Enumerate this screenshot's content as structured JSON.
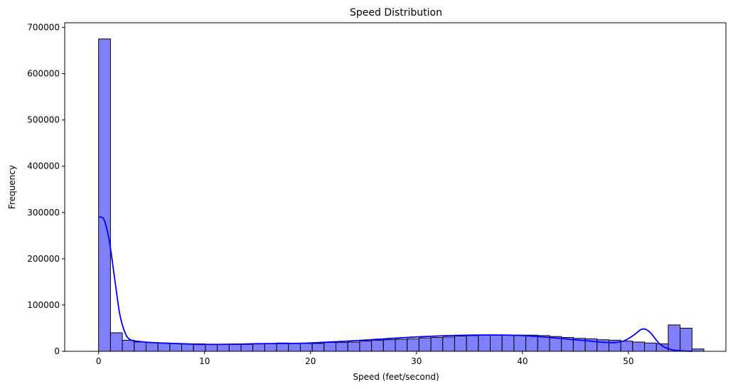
{
  "chart_data": {
    "type": "bar",
    "title": "Speed Distribution",
    "xlabel": "Speed (feet/second)",
    "ylabel": "Frequency",
    "xlim": [
      -3.2,
      59.2
    ],
    "ylim": [
      0,
      710000
    ],
    "xticks": [
      0,
      10,
      20,
      30,
      40,
      50
    ],
    "yticks": [
      0,
      100000,
      200000,
      300000,
      400000,
      500000,
      600000,
      700000
    ],
    "bin_width": 1.12,
    "bin_start": 0,
    "bar_color": "#8080ff",
    "kde_color": "#0000ff",
    "grid": false,
    "legend": "none",
    "values": [
      675000,
      40000,
      24000,
      20000,
      19000,
      18000,
      17000,
      16000,
      16000,
      15000,
      15000,
      15000,
      15000,
      16000,
      17000,
      18000,
      17000,
      17000,
      17000,
      19000,
      19000,
      20000,
      22000,
      24000,
      25000,
      26000,
      27000,
      29000,
      30000,
      31000,
      33000,
      34000,
      35000,
      35000,
      35000,
      35000,
      35000,
      34000,
      32000,
      30000,
      28000,
      27000,
      25000,
      24000,
      22000,
      20000,
      18000,
      16000,
      57000,
      50000,
      5000
    ],
    "kde": {
      "x": [
        0,
        0.5,
        1,
        1.5,
        2,
        2.5,
        3,
        4,
        5,
        7,
        10,
        13,
        15,
        18,
        20,
        25,
        30,
        35,
        40,
        45,
        48,
        49.5,
        50.5,
        51.3,
        52,
        53,
        54,
        55,
        56
      ],
      "y": [
        290000,
        285000,
        240000,
        160000,
        80000,
        40000,
        25000,
        21000,
        19000,
        17000,
        15000,
        15500,
        16500,
        17000,
        18000,
        24000,
        31000,
        35000,
        34000,
        25000,
        19000,
        22000,
        35000,
        48000,
        42000,
        15000,
        4000,
        1000,
        0
      ]
    }
  }
}
